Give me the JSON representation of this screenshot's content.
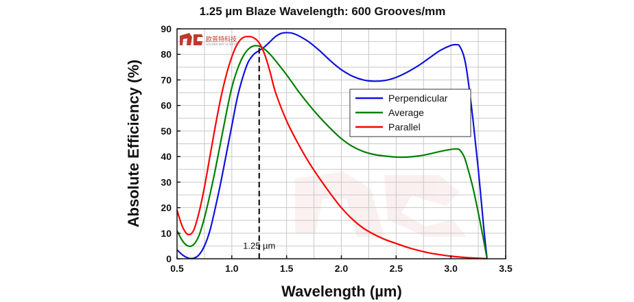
{
  "chart_data": {
    "type": "line",
    "title": "1.25 µm Blaze Wavelength: 600 Grooves/mm",
    "xlabel": "Wavelength (µm)",
    "ylabel": "Absolute Efficiency (%)",
    "xlim": [
      0.5,
      3.5
    ],
    "ylim": [
      0,
      90
    ],
    "xticks": [
      0.5,
      1.0,
      1.5,
      2.0,
      2.5,
      3.0,
      3.5
    ],
    "yticks": [
      0,
      10,
      20,
      30,
      40,
      50,
      60,
      70,
      80,
      90
    ],
    "grid": true,
    "legend_position": "center-right",
    "series": [
      {
        "name": "Perpendicular",
        "color": "#1010e0",
        "x": [
          0.5,
          0.55,
          0.6,
          0.65,
          0.7,
          0.75,
          0.8,
          0.85,
          0.9,
          0.95,
          1.0,
          1.05,
          1.1,
          1.15,
          1.2,
          1.25,
          1.3,
          1.35,
          1.4,
          1.45,
          1.5,
          1.55,
          1.6,
          1.7,
          1.8,
          1.9,
          2.0,
          2.1,
          2.2,
          2.3,
          2.4,
          2.5,
          2.6,
          2.7,
          2.8,
          2.9,
          3.0,
          3.05,
          3.08,
          3.12,
          3.15,
          3.2,
          3.25,
          3.3,
          3.33
        ],
        "y": [
          3.5,
          1.5,
          0.3,
          0.2,
          1.5,
          5,
          11,
          20,
          30,
          41,
          52,
          63,
          71,
          77,
          80,
          81.5,
          83,
          85,
          87,
          88.2,
          88.5,
          88.3,
          87.5,
          85,
          81.5,
          77.5,
          74,
          71.5,
          70,
          69.5,
          69.8,
          71,
          73,
          75.5,
          78.5,
          81.5,
          83.5,
          83.8,
          83.2,
          79,
          72,
          55,
          35,
          12,
          0
        ]
      },
      {
        "name": "Average",
        "color": "#008000",
        "x": [
          0.5,
          0.55,
          0.6,
          0.65,
          0.7,
          0.75,
          0.8,
          0.85,
          0.9,
          0.95,
          1.0,
          1.05,
          1.1,
          1.15,
          1.2,
          1.25,
          1.3,
          1.35,
          1.4,
          1.5,
          1.6,
          1.7,
          1.8,
          1.9,
          2.0,
          2.1,
          2.2,
          2.3,
          2.4,
          2.5,
          2.6,
          2.7,
          2.8,
          2.9,
          3.0,
          3.05,
          3.08,
          3.12,
          3.15,
          3.2,
          3.25,
          3.3,
          3.33
        ],
        "y": [
          11,
          7,
          5,
          5.5,
          9,
          16,
          25,
          35,
          46,
          57,
          67,
          74,
          79,
          82,
          83.3,
          83.2,
          82,
          80,
          77.5,
          72,
          66,
          60.5,
          55.5,
          51,
          47,
          44,
          42,
          40.8,
          40.2,
          39.8,
          39.8,
          40.2,
          41,
          42,
          42.8,
          43,
          42.6,
          40,
          36,
          28,
          18,
          7,
          0
        ]
      },
      {
        "name": "Parallel",
        "color": "#ff0000",
        "x": [
          0.5,
          0.55,
          0.6,
          0.65,
          0.7,
          0.75,
          0.8,
          0.85,
          0.9,
          0.95,
          1.0,
          1.05,
          1.1,
          1.15,
          1.2,
          1.25,
          1.3,
          1.35,
          1.4,
          1.5,
          1.6,
          1.7,
          1.8,
          1.9,
          2.0,
          2.1,
          2.2,
          2.3,
          2.4,
          2.5,
          2.6,
          2.7,
          2.8,
          2.9,
          3.0,
          3.1,
          3.2,
          3.25,
          3.3,
          3.33
        ],
        "y": [
          19,
          12.5,
          9.5,
          11,
          18,
          28,
          40,
          52,
          63,
          72,
          79,
          84,
          86.5,
          87,
          86.5,
          84.5,
          80,
          73,
          65,
          54,
          45.5,
          38,
          31.5,
          25.5,
          20,
          15.5,
          12,
          9.5,
          7.5,
          6,
          4.5,
          3.3,
          2.3,
          1.6,
          1,
          0.6,
          0.3,
          0.2,
          0.1,
          0
        ]
      }
    ],
    "annotations": [
      {
        "text": "1.25 µm",
        "x": 1.25,
        "y": 5.5,
        "style": "dashed-vertical-line",
        "x_line": 1.25
      }
    ],
    "logo": {
      "text": "欧普特科技",
      "subtext": "GOLDEN WAY SCIENTIFIC",
      "color": "#c0392b"
    }
  }
}
